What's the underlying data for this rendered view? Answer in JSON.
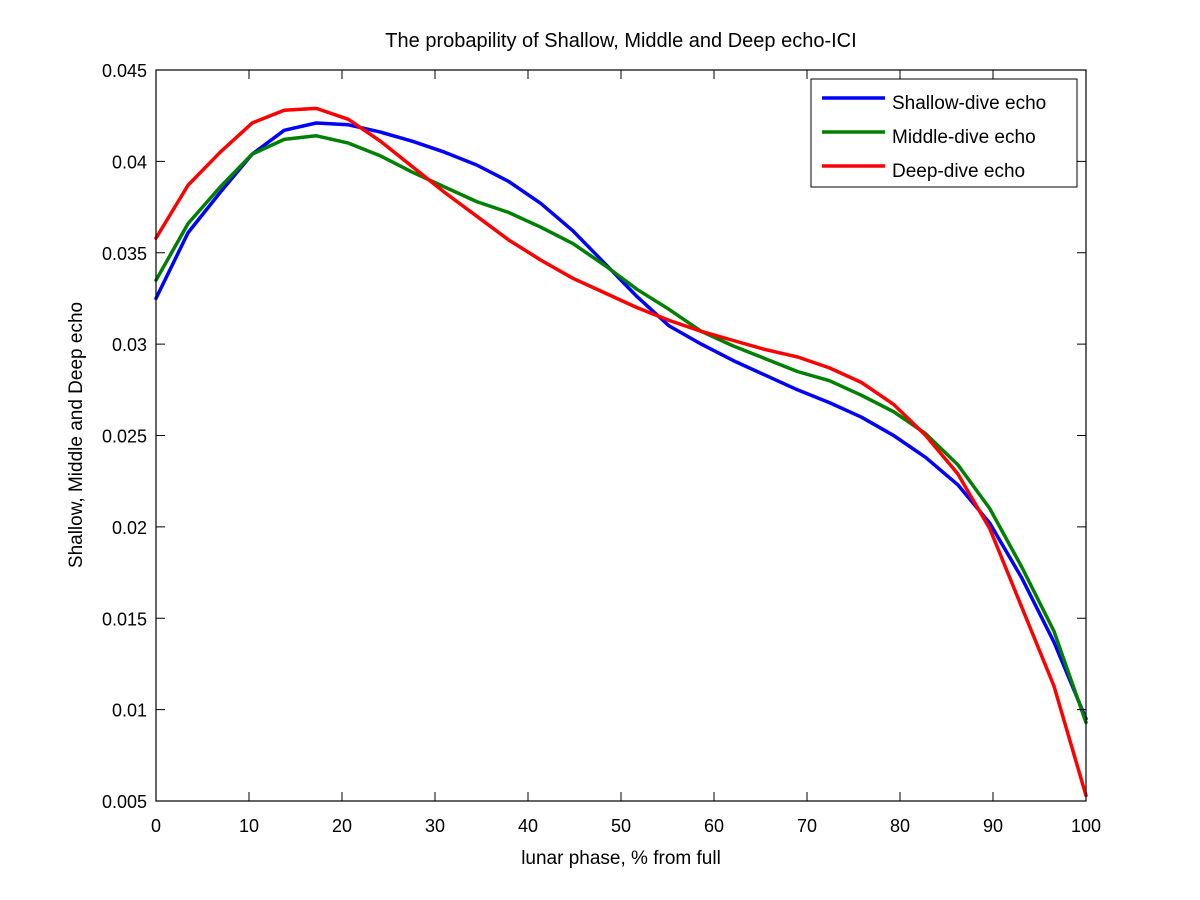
{
  "chart_data": {
    "type": "line",
    "title": "The probapility of Shallow, Middle and Deep echo-ICI",
    "xlabel": "lunar phase, % from full",
    "ylabel": "Shallow, Middle and Deep echo",
    "xlim": [
      0,
      100
    ],
    "ylim": [
      0.005,
      0.045
    ],
    "xticks": [
      0,
      10,
      20,
      30,
      40,
      50,
      60,
      70,
      80,
      90,
      100
    ],
    "xtick_labels": [
      "0",
      "10",
      "20",
      "30",
      "40",
      "50",
      "60",
      "70",
      "80",
      "90",
      "100"
    ],
    "yticks": [
      0.005,
      0.01,
      0.015,
      0.02,
      0.025,
      0.03,
      0.035,
      0.04,
      0.045
    ],
    "ytick_labels": [
      "0.005",
      "0.01",
      "0.015",
      "0.02",
      "0.025",
      "0.03",
      "0.035",
      "0.04",
      "0.045"
    ],
    "grid": false,
    "legend_position": "top-right",
    "x": [
      0,
      3.45,
      6.9,
      10.34,
      13.79,
      17.24,
      20.69,
      24.14,
      27.59,
      31.03,
      34.48,
      37.93,
      41.38,
      44.83,
      48.28,
      51.72,
      55.17,
      58.62,
      62.07,
      65.52,
      68.97,
      72.41,
      75.86,
      79.31,
      82.76,
      86.21,
      89.66,
      93.1,
      96.55,
      100
    ],
    "series": [
      {
        "name": "Shallow-dive echo",
        "color": "#0000ff",
        "values": [
          0.0325,
          0.0361,
          0.0383,
          0.0404,
          0.0417,
          0.0421,
          0.042,
          0.0416,
          0.0411,
          0.0405,
          0.0398,
          0.0389,
          0.0377,
          0.0362,
          0.0344,
          0.0326,
          0.031,
          0.03,
          0.0291,
          0.0283,
          0.0275,
          0.0268,
          0.026,
          0.025,
          0.0238,
          0.0223,
          0.0202,
          0.0172,
          0.0137,
          0.0095
        ]
      },
      {
        "name": "Middle-dive echo",
        "color": "#008000",
        "values": [
          0.0335,
          0.0366,
          0.0386,
          0.0404,
          0.0412,
          0.0414,
          0.041,
          0.0403,
          0.0394,
          0.0386,
          0.0378,
          0.0372,
          0.0364,
          0.0355,
          0.0343,
          0.033,
          0.0319,
          0.0307,
          0.0299,
          0.0292,
          0.0285,
          0.028,
          0.0272,
          0.0263,
          0.0251,
          0.0234,
          0.021,
          0.0178,
          0.0143,
          0.0093
        ]
      },
      {
        "name": "Deep-dive echo",
        "color": "#ff0000",
        "values": [
          0.0358,
          0.0387,
          0.0405,
          0.0421,
          0.0428,
          0.0429,
          0.0423,
          0.0411,
          0.0397,
          0.0383,
          0.037,
          0.0357,
          0.0346,
          0.0336,
          0.0328,
          0.032,
          0.0313,
          0.0307,
          0.0302,
          0.0297,
          0.0293,
          0.0287,
          0.0279,
          0.0267,
          0.025,
          0.0229,
          0.0199,
          0.0156,
          0.0113,
          0.0053
        ]
      }
    ]
  }
}
